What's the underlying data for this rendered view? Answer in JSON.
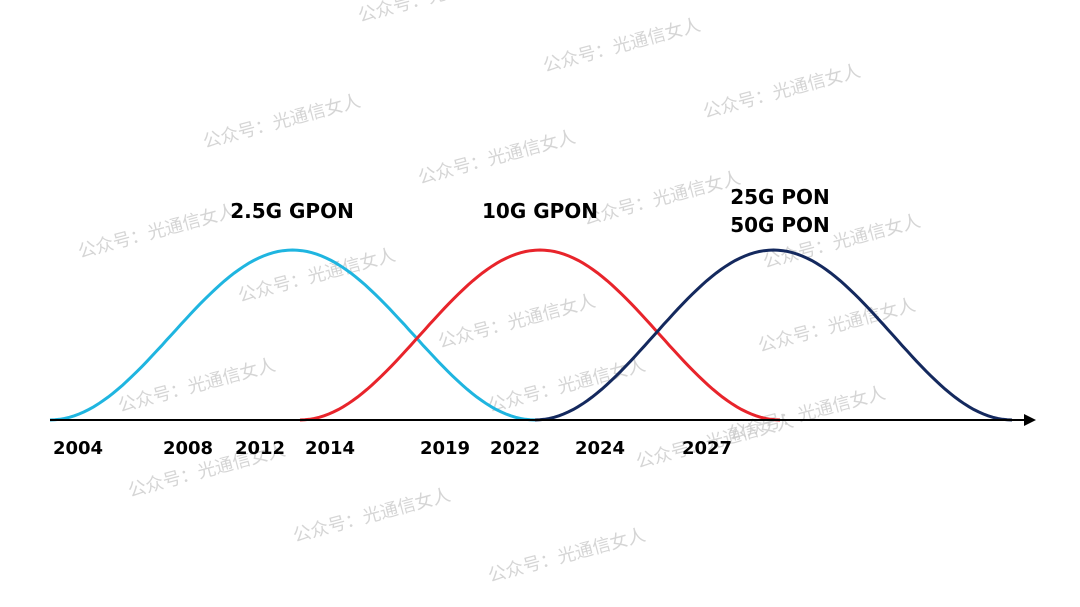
{
  "curves": [
    {
      "label": "2.5G GPON",
      "color": "#1fb5e0"
    },
    {
      "label": "10G GPON",
      "color": "#e8242b"
    },
    {
      "label": "25G PON",
      "label2": "50G PON",
      "color": "#14295e"
    }
  ],
  "years": [
    "2004",
    "2008",
    "2012",
    "2014",
    "2019",
    "2022",
    "2024",
    "2027"
  ],
  "watermark": "公众号：光通信女人"
}
